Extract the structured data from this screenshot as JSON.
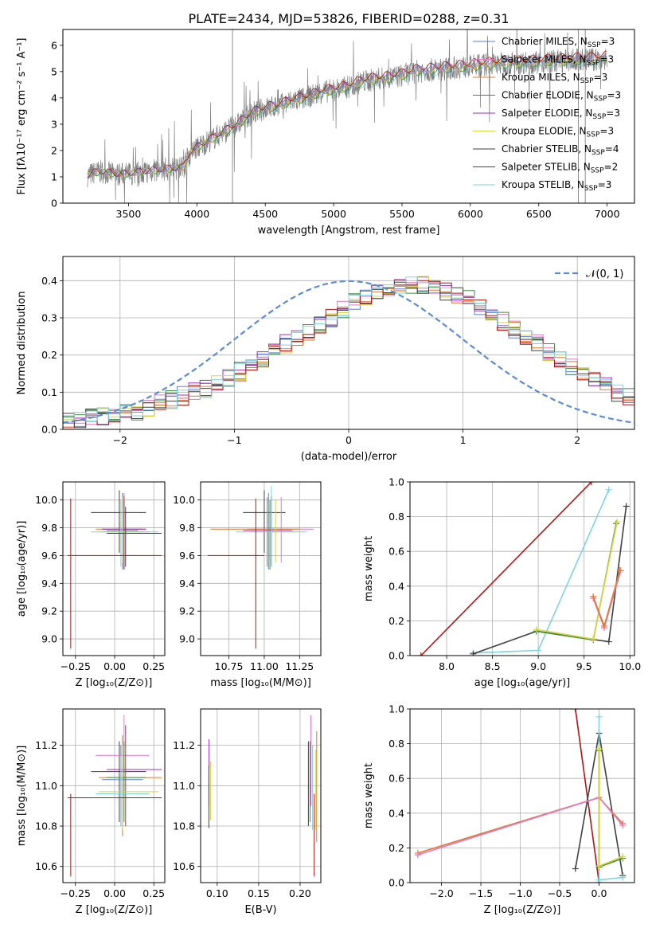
{
  "figure": {
    "title": "PLATE=2434, MJD=53826, FIBERID=0288, z=0.31"
  },
  "colors": {
    "chabrier_miles": "#5b7fd6",
    "salpeter_miles": "#e377c2",
    "kroupa_miles": "#e07a2c",
    "chabrier_elodie": "#3f8f3f",
    "salpeter_elodie": "#9b30c0",
    "kroupa_elodie": "#d6d63a",
    "chabrier_stelib": "#404040",
    "salpeter_stelib": "#b21414",
    "kroupa_stelib": "#7fd3e0",
    "data": "#808080",
    "normal": "#5b8bd9"
  },
  "chart_data": [
    {
      "id": "spectrum",
      "type": "line",
      "title": "PLATE=2434, MJD=53826, FIBERID=0288, z=0.31",
      "xlabel": "wavelength [Angstrom, rest frame]",
      "ylabel": "Flux [fλ10⁻¹⁷ erg cm⁻² s⁻¹ A⁻¹]",
      "xlim": [
        3020,
        7200
      ],
      "ylim": [
        0,
        6.6
      ],
      "xticks": [
        "3500",
        "4000",
        "4500",
        "5000",
        "5500",
        "6000",
        "6500",
        "7000"
      ],
      "yticks": [
        "0",
        "1",
        "2",
        "3",
        "4",
        "5",
        "6"
      ],
      "legend_position": "top-right",
      "legend": [
        "Chabrier MILES, N_SSP=3",
        "Salpeter MILES, N_SSP=3",
        "Kroupa MILES, N_SSP=3",
        "Chabrier ELODIE, N_SSP=3",
        "Salpeter ELODIE, N_SSP=3",
        "Kroupa ELODIE, N_SSP=3",
        "Chabrier STELIB, N_SSP=4",
        "Salpeter STELIB, N_SSP=2",
        "Kroupa STELIB, N_SSP=3"
      ],
      "continuum": {
        "x": [
          3200,
          3250,
          3300,
          3400,
          3500,
          3600,
          3700,
          3800,
          3900,
          3950,
          4000,
          4100,
          4200,
          4300,
          4400,
          4500,
          4600,
          4700,
          4800,
          4900,
          5000,
          5100,
          5200,
          5300,
          5400,
          5500,
          5600,
          5700,
          5800,
          5900,
          6000,
          6100,
          6200,
          6300,
          6400,
          6500,
          6600,
          6700,
          6800,
          6900,
          7000
        ],
        "y": [
          1.05,
          1.15,
          1.2,
          1.1,
          1.12,
          1.2,
          1.25,
          1.3,
          1.35,
          1.9,
          2.1,
          2.4,
          2.7,
          3.0,
          3.4,
          3.6,
          3.7,
          3.9,
          4.0,
          4.2,
          4.3,
          4.4,
          4.6,
          4.7,
          4.75,
          4.85,
          5.0,
          5.05,
          5.1,
          5.15,
          5.2,
          5.25,
          5.3,
          5.3,
          5.35,
          5.35,
          5.4,
          5.4,
          5.45,
          5.45,
          5.5
        ]
      }
    },
    {
      "id": "residuals",
      "type": "line",
      "xlabel": "(data-model)/error",
      "ylabel": "Normed distribution",
      "xlim": [
        -2.5,
        2.5
      ],
      "ylim": [
        0,
        0.465
      ],
      "xticks": [
        "−2",
        "−1",
        "0",
        "1",
        "2"
      ],
      "yticks": [
        "0.0",
        "0.1",
        "0.2",
        "0.3",
        "0.4"
      ],
      "legend": [
        "𝒩(0, 1)"
      ],
      "legend_position": "top-right",
      "bin_edges_from": -2.5,
      "bin_width": 0.1,
      "histogram_reference": [
        0.02,
        0.025,
        0.03,
        0.035,
        0.04,
        0.045,
        0.05,
        0.06,
        0.07,
        0.08,
        0.09,
        0.1,
        0.11,
        0.125,
        0.14,
        0.155,
        0.17,
        0.19,
        0.21,
        0.23,
        0.245,
        0.26,
        0.28,
        0.3,
        0.32,
        0.34,
        0.35,
        0.365,
        0.375,
        0.38,
        0.39,
        0.39,
        0.38,
        0.37,
        0.36,
        0.35,
        0.33,
        0.31,
        0.29,
        0.27,
        0.25,
        0.23,
        0.21,
        0.19,
        0.17,
        0.15,
        0.13,
        0.115,
        0.1,
        0.085
      ]
    },
    {
      "id": "age_vs_Z",
      "type": "scatter",
      "xlabel": "Z [log₁₀(Z/Z⊙)]",
      "ylabel": "age  [log₁₀(age/yr)]",
      "xlim": [
        -0.33,
        0.32
      ],
      "ylim": [
        8.88,
        10.13
      ],
      "xticks": [
        "−0.25",
        "0.00",
        "0.25"
      ],
      "yticks": [
        "9.0",
        "9.2",
        "9.4",
        "9.6",
        "9.8",
        "10.0"
      ]
    },
    {
      "id": "age_vs_mass",
      "type": "scatter",
      "xlabel": "mass [log₁₀(M/M⊙)]",
      "xlim": [
        10.55,
        11.4
      ],
      "ylim": [
        8.88,
        10.13
      ],
      "xticks": [
        "10.75",
        "11.00",
        "11.25"
      ],
      "yticks": [
        "9.0",
        "9.2",
        "9.4",
        "9.6",
        "9.8",
        "10.0"
      ]
    },
    {
      "id": "mass_weight_vs_age",
      "type": "line",
      "xlabel": "age  [log₁₀(age/yr)]",
      "ylabel": "mass weight",
      "xlim": [
        7.6,
        10.05
      ],
      "ylim": [
        0,
        1
      ],
      "xticks": [
        "8.0",
        "8.5",
        "9.0",
        "9.5",
        "10.0"
      ],
      "yticks": [
        "0.0",
        "0.2",
        "0.4",
        "0.6",
        "0.8",
        "1.0"
      ],
      "series": [
        {
          "key": "salpeter_stelib",
          "x": [
            7.72,
            9.58
          ],
          "y": [
            0.0,
            1.0
          ]
        },
        {
          "key": "kroupa_stelib",
          "x": [
            8.29,
            9.0,
            9.77
          ],
          "y": [
            0.015,
            0.03,
            0.955
          ]
        },
        {
          "key": "chabrier_stelib",
          "x": [
            8.29,
            8.98,
            9.77,
            9.96
          ],
          "y": [
            0.01,
            0.14,
            0.08,
            0.86
          ]
        },
        {
          "key": "chabrier_elodie",
          "x": [
            8.98,
            9.6,
            9.85
          ],
          "y": [
            0.14,
            0.09,
            0.76
          ]
        },
        {
          "key": "kroupa_elodie",
          "x": [
            8.98,
            9.6,
            9.86
          ],
          "y": [
            0.15,
            0.095,
            0.77
          ]
        },
        {
          "key": "salpeter_miles",
          "x": [
            9.6,
            9.72,
            9.9
          ],
          "y": [
            0.33,
            0.16,
            0.49
          ]
        },
        {
          "key": "kroupa_miles",
          "x": [
            9.6,
            9.72,
            9.89
          ],
          "y": [
            0.34,
            0.17,
            0.49
          ]
        }
      ]
    },
    {
      "id": "mass_vs_Z",
      "type": "scatter",
      "xlabel": "Z [log₁₀(Z/Z⊙)]",
      "ylabel": "mass [log₁₀(M/M⊙)]",
      "xlim": [
        -0.33,
        0.32
      ],
      "ylim": [
        10.52,
        11.38
      ],
      "xticks": [
        "−0.25",
        "0.00",
        "0.25"
      ],
      "yticks": [
        "10.6",
        "10.8",
        "11.0",
        "11.2"
      ]
    },
    {
      "id": "mass_vs_ebv",
      "type": "scatter",
      "xlabel": "E(B-V)",
      "xlim": [
        0.08,
        0.225
      ],
      "ylim": [
        10.52,
        11.38
      ],
      "xticks": [
        "0.10",
        "0.15",
        "0.20"
      ],
      "yticks": [
        "10.6",
        "10.8",
        "11.0",
        "11.2"
      ]
    },
    {
      "id": "mass_weight_vs_Z",
      "type": "line",
      "xlabel": "Z [log₁₀(Z/Z⊙)]",
      "ylabel": "mass weight",
      "xlim": [
        -2.4,
        0.45
      ],
      "ylim": [
        0,
        1
      ],
      "xticks": [
        "−2.0",
        "−1.5",
        "−1.0",
        "−0.5",
        "0.0"
      ],
      "yticks": [
        "0.0",
        "0.2",
        "0.4",
        "0.6",
        "0.8",
        "1.0"
      ],
      "series": [
        {
          "key": "salpeter_stelib",
          "x": [
            -0.3,
            0.0
          ],
          "y": [
            1.0,
            0.0
          ]
        },
        {
          "key": "chabrier_stelib",
          "x": [
            -0.3,
            0.0,
            0.3
          ],
          "y": [
            0.08,
            0.86,
            0.04
          ]
        },
        {
          "key": "kroupa_stelib",
          "x": [
            0.0,
            0.0,
            0.3
          ],
          "y": [
            0.955,
            0.015,
            0.03
          ]
        },
        {
          "key": "kroupa_miles",
          "x": [
            -2.3,
            0.0,
            0.3
          ],
          "y": [
            0.17,
            0.49,
            0.34
          ]
        },
        {
          "key": "salpeter_miles",
          "x": [
            -2.3,
            0.0,
            0.3
          ],
          "y": [
            0.16,
            0.49,
            0.33
          ]
        },
        {
          "key": "chabrier_elodie",
          "x": [
            0.0,
            0.0,
            0.3
          ],
          "y": [
            0.76,
            0.09,
            0.14
          ]
        },
        {
          "key": "kroupa_elodie",
          "x": [
            0.0,
            0.0,
            0.3
          ],
          "y": [
            0.77,
            0.095,
            0.15
          ]
        }
      ]
    }
  ],
  "error_crosses": {
    "age_vs_Z": [
      {
        "key": "chabrier_stelib",
        "x": 0.03,
        "xe": [
          -0.15,
          0.2
        ],
        "y": 9.91,
        "ye": [
          9.62,
          10.07
        ]
      },
      {
        "key": "chabrier_miles",
        "x": 0.05,
        "xe": [
          -0.08,
          0.18
        ],
        "y": 9.79,
        "ye": [
          9.5,
          10.05
        ]
      },
      {
        "key": "salpeter_miles",
        "x": 0.06,
        "xe": [
          -0.08,
          0.22
        ],
        "y": 9.77,
        "ye": [
          9.5,
          10.05
        ]
      },
      {
        "key": "kroupa_miles",
        "x": 0.05,
        "xe": [
          -0.12,
          0.2
        ],
        "y": 9.79,
        "ye": [
          9.52,
          10.02
        ]
      },
      {
        "key": "chabrier_elodie",
        "x": 0.06,
        "xe": [
          -0.05,
          0.15
        ],
        "y": 9.78,
        "ye": [
          9.5,
          10.0
        ]
      },
      {
        "key": "salpeter_elodie",
        "x": 0.06,
        "xe": [
          -0.08,
          0.2
        ],
        "y": 9.79,
        "ye": [
          9.5,
          10.03
        ]
      },
      {
        "key": "kroupa_elodie",
        "x": 0.05,
        "xe": [
          -0.1,
          0.18
        ],
        "y": 9.77,
        "ye": [
          9.55,
          10.02
        ]
      },
      {
        "key": "kroupa_stelib",
        "x": 0.04,
        "xe": [
          -0.15,
          0.28
        ],
        "y": 9.77,
        "ye": [
          9.52,
          10.0
        ]
      },
      {
        "key": "salpeter_stelib",
        "x": -0.28,
        "xe": [
          -0.3,
          0.3
        ],
        "y": 9.6,
        "ye": [
          8.93,
          10.01
        ]
      },
      {
        "key": "chabrier_stelib",
        "x": 0.07,
        "xe": [
          -0.05,
          0.3
        ],
        "y": 9.76,
        "ye": [
          9.52,
          9.95
        ]
      }
    ],
    "age_vs_mass": [
      {
        "key": "chabrier_stelib",
        "x": 11.0,
        "xe": [
          10.85,
          11.15
        ],
        "y": 9.91,
        "ye": [
          9.62,
          10.07
        ]
      },
      {
        "key": "chabrier_miles",
        "x": 11.03,
        "xe": [
          10.88,
          11.18
        ],
        "y": 9.79,
        "ye": [
          9.5,
          10.05
        ]
      },
      {
        "key": "salpeter_miles",
        "x": 11.12,
        "xe": [
          10.9,
          11.35
        ],
        "y": 9.79,
        "ye": [
          9.55,
          10.02
        ]
      },
      {
        "key": "kroupa_miles",
        "x": 11.02,
        "xe": [
          10.62,
          11.25
        ],
        "y": 9.79,
        "ye": [
          9.52,
          10.02
        ]
      },
      {
        "key": "chabrier_elodie",
        "x": 11.04,
        "xe": [
          10.9,
          11.15
        ],
        "y": 9.78,
        "ye": [
          9.5,
          10.0
        ]
      },
      {
        "key": "salpeter_elodie",
        "x": 11.05,
        "xe": [
          10.85,
          11.2
        ],
        "y": 9.78,
        "ye": [
          9.52,
          10.03
        ]
      },
      {
        "key": "kroupa_elodie",
        "x": 11.08,
        "xe": [
          10.9,
          11.22
        ],
        "y": 9.77,
        "ye": [
          9.55,
          10.0
        ]
      },
      {
        "key": "kroupa_stelib",
        "x": 11.05,
        "xe": [
          10.8,
          11.3
        ],
        "y": 9.77,
        "ye": [
          9.52,
          10.1
        ]
      },
      {
        "key": "salpeter_stelib",
        "x": 10.94,
        "xe": [
          10.6,
          11.0
        ],
        "y": 9.6,
        "ye": [
          8.93,
          10.01
        ]
      }
    ],
    "mass_vs_Z": [
      {
        "key": "chabrier_stelib",
        "x": 0.03,
        "xe": [
          -0.15,
          0.2
        ],
        "y": 11.07,
        "ye": [
          10.82,
          11.22
        ]
      },
      {
        "key": "salpeter_miles",
        "x": 0.06,
        "xe": [
          -0.12,
          0.22
        ],
        "y": 11.15,
        "ye": [
          10.95,
          11.35
        ]
      },
      {
        "key": "kroupa_miles",
        "x": 0.05,
        "xe": [
          -0.1,
          0.3
        ],
        "y": 11.04,
        "ye": [
          10.75,
          11.25
        ]
      },
      {
        "key": "salpeter_elodie",
        "x": 0.07,
        "xe": [
          -0.05,
          0.3
        ],
        "y": 11.08,
        "ye": [
          10.8,
          11.3
        ]
      },
      {
        "key": "chabrier_miles",
        "x": 0.04,
        "xe": [
          -0.08,
          0.18
        ],
        "y": 11.03,
        "ye": [
          10.8,
          11.2
        ]
      },
      {
        "key": "chabrier_elodie",
        "x": 0.06,
        "xe": [
          -0.05,
          0.2
        ],
        "y": 11.04,
        "ye": [
          10.82,
          11.22
        ]
      },
      {
        "key": "kroupa_elodie",
        "x": 0.05,
        "xe": [
          -0.1,
          0.28
        ],
        "y": 10.97,
        "ye": [
          10.78,
          11.2
        ]
      },
      {
        "key": "kroupa_stelib",
        "x": 0.04,
        "xe": [
          -0.12,
          0.22
        ],
        "y": 10.96,
        "ye": [
          10.8,
          11.15
        ]
      },
      {
        "key": "salpeter_stelib",
        "x": -0.28,
        "xe": [
          -0.3,
          0.3
        ],
        "y": 10.94,
        "ye": [
          10.55,
          10.96
        ]
      }
    ],
    "mass_vs_ebv": [
      {
        "key": "salpeter_elodie",
        "x": 0.09,
        "y": 11.08,
        "ye": [
          10.9,
          11.23
        ]
      },
      {
        "key": "chabrier_stelib",
        "x": 0.09,
        "y": 11.0,
        "ye": [
          10.79,
          11.1
        ]
      },
      {
        "key": "kroupa_elodie",
        "x": 0.092,
        "y": 10.97,
        "ye": [
          10.83,
          11.12
        ]
      },
      {
        "key": "chabrier_stelib",
        "x": 0.21,
        "y": 11.0,
        "ye": [
          10.8,
          11.22
        ]
      },
      {
        "key": "salpeter_miles",
        "x": 0.213,
        "y": 11.15,
        "ye": [
          10.9,
          11.35
        ]
      },
      {
        "key": "kroupa_stelib",
        "x": 0.215,
        "y": 10.96,
        "ye": [
          10.78,
          11.2
        ]
      },
      {
        "key": "chabrier_elodie",
        "x": 0.212,
        "y": 11.04,
        "ye": [
          10.82,
          11.22
        ]
      },
      {
        "key": "kroupa_miles",
        "x": 0.22,
        "y": 11.04,
        "ye": [
          10.72,
          11.27
        ]
      },
      {
        "key": "salpeter_stelib",
        "x": 0.217,
        "y": 10.94,
        "ye": [
          10.55,
          10.96
        ]
      },
      {
        "key": "kroupa_elodie",
        "x": 0.219,
        "y": 10.98,
        "ye": [
          10.78,
          11.18
        ]
      }
    ]
  }
}
